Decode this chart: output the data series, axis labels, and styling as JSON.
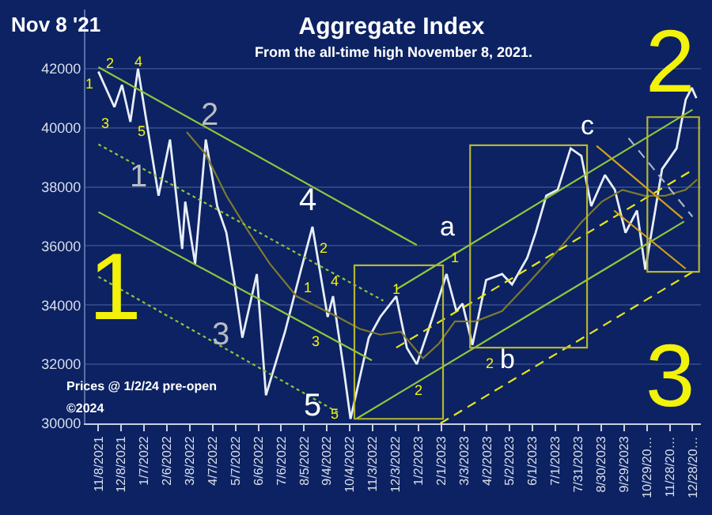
{
  "chart_data": {
    "type": "line",
    "title": "Aggregate Index",
    "subtitle": "From the all-time high November 8, 2021.",
    "xlim": [
      "2021-10-22",
      "2024-01-08"
    ],
    "ylim": [
      30000,
      44000
    ],
    "yticks": [
      30000,
      32000,
      34000,
      36000,
      38000,
      40000,
      42000
    ],
    "xticks": [
      {
        "value": "2021-11-08",
        "label": "11/8/2021"
      },
      {
        "value": "2021-12-08",
        "label": "12/8/2021"
      },
      {
        "value": "2022-01-07",
        "label": "1/7/2022"
      },
      {
        "value": "2022-02-06",
        "label": "2/6/2022"
      },
      {
        "value": "2022-03-08",
        "label": "3/8/2022"
      },
      {
        "value": "2022-04-07",
        "label": "4/7/2022"
      },
      {
        "value": "2022-05-07",
        "label": "5/7/2022"
      },
      {
        "value": "2022-06-06",
        "label": "6/6/2022"
      },
      {
        "value": "2022-07-06",
        "label": "7/6/2022"
      },
      {
        "value": "2022-08-05",
        "label": "8/5/2022"
      },
      {
        "value": "2022-09-04",
        "label": "9/4/2022"
      },
      {
        "value": "2022-10-04",
        "label": "10/4/2022"
      },
      {
        "value": "2022-11-03",
        "label": "11/3/2022"
      },
      {
        "value": "2022-12-03",
        "label": "12/3/2022"
      },
      {
        "value": "2023-01-02",
        "label": "1/2/2023"
      },
      {
        "value": "2023-02-01",
        "label": "2/1/2023"
      },
      {
        "value": "2023-03-03",
        "label": "3/3/2023"
      },
      {
        "value": "2023-04-02",
        "label": "4/2/2023"
      },
      {
        "value": "2023-05-02",
        "label": "5/2/2023"
      },
      {
        "value": "2023-06-01",
        "label": "6/1/2023"
      },
      {
        "value": "2023-07-01",
        "label": "7/1/2023"
      },
      {
        "value": "2023-07-31",
        "label": "7/31/2023"
      },
      {
        "value": "2023-08-30",
        "label": "8/30/2023"
      },
      {
        "value": "2023-09-29",
        "label": "9/29/2023"
      },
      {
        "value": "2023-10-29",
        "label": "10/29/20…"
      },
      {
        "value": "2023-11-28",
        "label": "11/28/20…"
      },
      {
        "value": "2023-12-28",
        "label": "12/28/20…"
      }
    ],
    "grid": "y",
    "marker": "none",
    "series": [
      {
        "color": "#e8eef8",
        "line_style": "solid",
        "x": [
          "2021-11-08",
          "2021-11-29",
          "2021-12-09",
          "2021-12-20",
          "2021-12-30",
          "2022-01-09",
          "2022-01-26",
          "2022-02-10",
          "2022-02-26",
          "2022-03-02",
          "2022-03-15",
          "2022-03-29",
          "2022-04-13",
          "2022-04-25",
          "2022-05-06",
          "2022-05-16",
          "2022-06-04",
          "2022-06-16",
          "2022-07-11",
          "2022-08-01",
          "2022-08-16",
          "2022-09-05",
          "2022-09-12",
          "2022-09-26",
          "2022-10-05",
          "2022-10-29",
          "2022-11-13",
          "2022-12-04",
          "2022-12-18",
          "2022-12-31",
          "2023-01-21",
          "2023-02-08",
          "2023-02-21",
          "2023-03-01",
          "2023-03-14",
          "2023-04-01",
          "2023-04-22",
          "2023-05-05",
          "2023-05-25",
          "2023-06-05",
          "2023-06-19",
          "2023-07-04",
          "2023-07-21",
          "2023-08-04",
          "2023-08-17",
          "2023-09-04",
          "2023-09-17",
          "2023-10-01",
          "2023-10-16",
          "2023-10-27",
          "2023-11-18",
          "2023-12-07",
          "2023-12-19",
          "2023-12-27",
          "2024-01-02"
        ],
        "values": [
          41900,
          40700,
          41450,
          40200,
          42000,
          40400,
          37700,
          39600,
          35900,
          37500,
          35400,
          39600,
          37350,
          36450,
          34700,
          32900,
          35050,
          30950,
          33100,
          35200,
          36650,
          33600,
          34300,
          31850,
          30150,
          32900,
          33600,
          34300,
          32550,
          32000,
          33600,
          35050,
          33800,
          34050,
          32650,
          34850,
          35050,
          34700,
          35600,
          36450,
          37700,
          37900,
          39300,
          39050,
          37350,
          38400,
          37900,
          36450,
          37200,
          35200,
          38600,
          39300,
          40950,
          41350,
          41000
        ]
      },
      {
        "color": "#7d7a2e",
        "line_style": "solid",
        "x": [
          "2022-03-04",
          "2022-03-29",
          "2022-04-25",
          "2022-05-25",
          "2022-06-21",
          "2022-07-26",
          "2022-08-22",
          "2022-09-18",
          "2022-10-17",
          "2022-11-13",
          "2022-12-10",
          "2023-01-08",
          "2023-01-29",
          "2023-02-19",
          "2023-03-18",
          "2023-04-22",
          "2023-05-25",
          "2023-07-06",
          "2023-08-04",
          "2023-08-31",
          "2023-09-27",
          "2023-10-26",
          "2023-11-22",
          "2023-12-19",
          "2024-01-03"
        ],
        "values": [
          39850,
          39100,
          37700,
          36450,
          35400,
          34300,
          33950,
          33600,
          33200,
          33000,
          33100,
          32200,
          32700,
          33450,
          33450,
          33800,
          34700,
          35900,
          36800,
          37500,
          37900,
          37700,
          37700,
          37900,
          38250
        ]
      },
      {
        "color": "#8dc63f",
        "line_style": "solid",
        "x": [
          "2021-11-08",
          "2022-12-31"
        ],
        "values": [
          42050,
          36030
        ]
      },
      {
        "color": "#8dc63f",
        "line_style": "dotted",
        "x": [
          "2021-11-08",
          "2022-11-17"
        ],
        "values": [
          39440,
          34150
        ]
      },
      {
        "color": "#8dc63f",
        "line_style": "solid",
        "x": [
          "2021-11-08",
          "2022-11-02"
        ],
        "values": [
          37150,
          32130
        ]
      },
      {
        "color": "#8dc63f",
        "line_style": "dotted",
        "x": [
          "2021-11-08",
          "2022-09-22"
        ],
        "values": [
          34960,
          30320
        ]
      },
      {
        "color": "#8dc63f",
        "line_style": "solid",
        "x": [
          "2022-12-04",
          "2023-12-28"
        ],
        "values": [
          34530,
          40610
        ]
      },
      {
        "color": "#8dc63f",
        "line_style": "solid",
        "x": [
          "2022-10-13",
          "2023-12-17"
        ],
        "values": [
          30160,
          36830
        ]
      },
      {
        "color": "#e6e619",
        "line_style": "dashed",
        "x": [
          "2022-12-04",
          "2023-12-28"
        ],
        "values": [
          32560,
          38570
        ]
      },
      {
        "color": "#e6e619",
        "line_style": "dashed",
        "x": [
          "2023-01-31",
          "2023-12-28"
        ],
        "values": [
          30000,
          35120
        ]
      },
      {
        "color": "#d4a017",
        "line_style": "solid",
        "x": [
          "2023-08-24",
          "2023-12-15"
        ],
        "values": [
          39390,
          36930
        ]
      },
      {
        "color": "#d4a017",
        "line_style": "solid",
        "x": [
          "2023-09-16",
          "2023-12-19"
        ],
        "values": [
          37200,
          35230
        ]
      },
      {
        "color": "#aab4c8",
        "line_style": "dashed",
        "x": [
          "2023-10-05",
          "2023-12-28"
        ],
        "values": [
          39650,
          36990
        ]
      }
    ],
    "annotations": [
      "Nov 8 '21",
      "Prices @ 1/2/24 pre-open",
      "©2024",
      "1",
      "2",
      "3",
      "1",
      "2",
      "4",
      "3",
      "5",
      "2",
      "1",
      "3",
      "4",
      "2",
      "1",
      "4",
      "3",
      "5",
      "5",
      "1",
      "1",
      "2",
      "2",
      "a",
      "b",
      "c"
    ]
  }
}
